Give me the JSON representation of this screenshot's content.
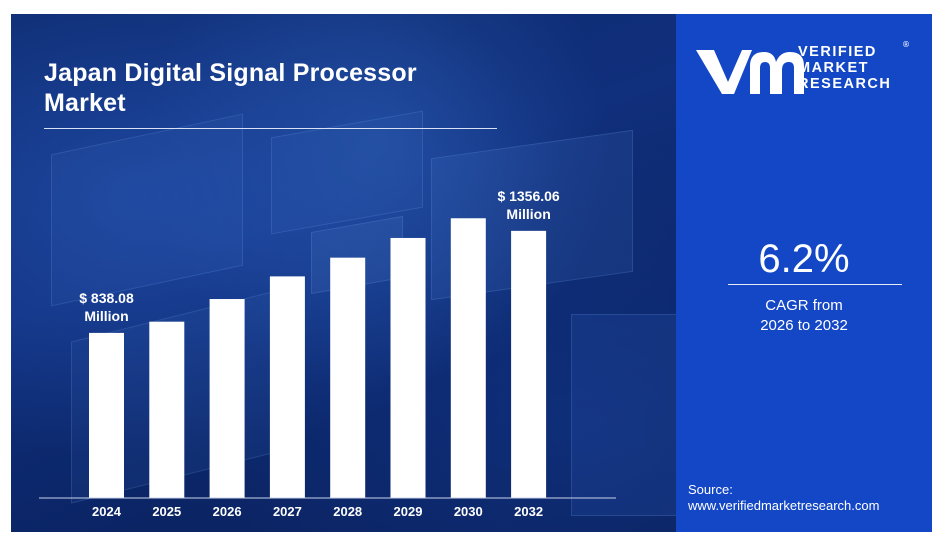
{
  "title_line1": "Japan Digital Signal Processor",
  "title_line2": "Market",
  "brand": {
    "line1": "VERIFIED",
    "line2": "MARKET",
    "line3": "RESEARCH",
    "registered": "®"
  },
  "cagr": {
    "value": "6.2%",
    "label_line1": "CAGR from",
    "label_line2": "2026 to 2032"
  },
  "source": {
    "label": "Source:",
    "url": "www.verifiedmarketresearch.com"
  },
  "colors": {
    "bar": "#ffffff",
    "right_panel": "#1447c6",
    "background": "#0d2a6e"
  },
  "chart_data": {
    "type": "bar",
    "title": "Japan Digital Signal Processor Market",
    "categories": [
      "2024",
      "2025",
      "2026",
      "2027",
      "2028",
      "2029",
      "2030",
      "2032"
    ],
    "values": [
      838.08,
      895,
      1010,
      1125,
      1220,
      1320,
      1420,
      1356.06
    ],
    "unit": "Million USD",
    "annotations": [
      {
        "category": "2024",
        "line1": "$ 838.08",
        "line2": "Million"
      },
      {
        "category": "2032",
        "line1": "$ 1356.06",
        "line2": "Million"
      }
    ],
    "xlabel": "",
    "ylabel": "",
    "grid": false,
    "legend": "none"
  }
}
